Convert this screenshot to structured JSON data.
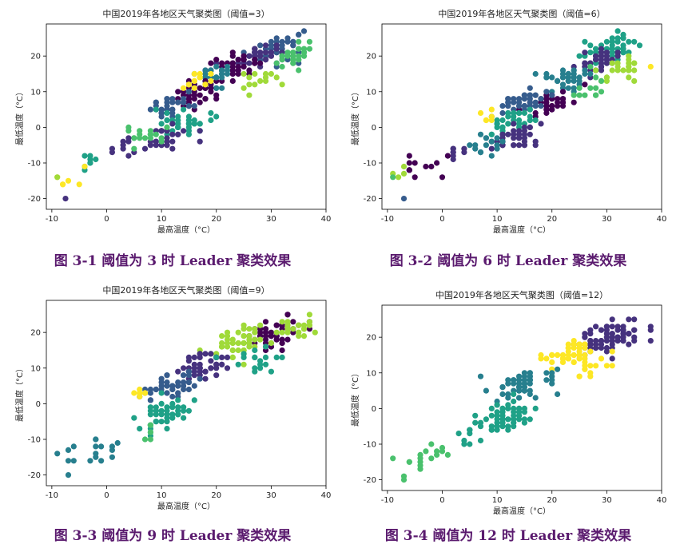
{
  "captions": [
    "图 3-1  阈值为 3 时 Leader 聚类效果",
    "图 3-2  阈值为 6 时 Leader 聚类效果",
    "图 3-3  阈值为 9 时 Leader 聚类效果",
    "图 3-4  阈值为 12 时 Leader 聚类效果"
  ],
  "chart_data": [
    {
      "type": "scatter",
      "title": "中国2019年各地区天气聚类图（阈值=3）",
      "xlabel": "最高温度（°C）",
      "ylabel": "最低温度（°C）",
      "xlim": [
        -11,
        40
      ],
      "ylim": [
        -23,
        29
      ],
      "xticks": [
        -10,
        0,
        10,
        20,
        30,
        40
      ],
      "yticks": [
        -20,
        -10,
        0,
        10,
        20
      ],
      "grid": false,
      "threshold": 3,
      "colors": [
        "#440154",
        "#46327e",
        "#365c8d",
        "#277f8e",
        "#1fa187",
        "#4ac16d",
        "#a0da39",
        "#fde725"
      ],
      "clusters": [
        {
          "cx": 31,
          "cy": 22,
          "sx": 2.5,
          "sy": 1.8,
          "n": 60,
          "c": 2
        },
        {
          "cx": 27,
          "cy": 20,
          "sx": 2.0,
          "sy": 1.5,
          "n": 45,
          "c": 1
        },
        {
          "cx": 34,
          "cy": 20,
          "sx": 2.0,
          "sy": 1.5,
          "n": 30,
          "c": 5
        },
        {
          "cx": 23,
          "cy": 17,
          "sx": 2.2,
          "sy": 1.6,
          "n": 40,
          "c": 0
        },
        {
          "cx": 20,
          "cy": 14,
          "sx": 2.0,
          "sy": 1.5,
          "n": 35,
          "c": 3
        },
        {
          "cx": 16,
          "cy": 9,
          "sx": 2.0,
          "sy": 1.6,
          "n": 40,
          "c": 0
        },
        {
          "cx": 12,
          "cy": 6,
          "sx": 2.0,
          "sy": 1.5,
          "n": 35,
          "c": 2
        },
        {
          "cx": 14,
          "cy": 2,
          "sx": 2.5,
          "sy": 1.8,
          "n": 40,
          "c": 4
        },
        {
          "cx": 11,
          "cy": -3,
          "sx": 2.0,
          "sy": 1.6,
          "n": 30,
          "c": 1
        },
        {
          "cx": 7,
          "cy": -2,
          "sx": 2.0,
          "sy": 2.0,
          "n": 18,
          "c": 5
        },
        {
          "cx": 16,
          "cy": 12,
          "sx": 1.5,
          "sy": 1.2,
          "n": 15,
          "c": 7
        },
        {
          "cx": 28,
          "cy": 12,
          "sx": 2.5,
          "sy": 2.0,
          "n": 14,
          "c": 6
        },
        {
          "cx": 3,
          "cy": -5,
          "sx": 1.2,
          "sy": 1.5,
          "n": 8,
          "c": 1
        },
        {
          "cx": -3,
          "cy": -10,
          "sx": 1.5,
          "sy": 2.0,
          "n": 8,
          "c": 4
        },
        {
          "cx": -6,
          "cy": -14,
          "sx": 1.5,
          "sy": 1.5,
          "n": 6,
          "c": 7
        }
      ],
      "extra_points": [
        [
          -7.5,
          -20,
          1
        ],
        [
          -9,
          -14,
          6
        ]
      ]
    },
    {
      "type": "scatter",
      "title": "中国2019年各地区天气聚类图（阈值=6）",
      "xlabel": "最高温度（°C）",
      "ylabel": "最低温度（°C）",
      "xlim": [
        -11,
        40
      ],
      "ylim": [
        -23,
        29
      ],
      "xticks": [
        -10,
        0,
        10,
        20,
        30,
        40
      ],
      "yticks": [
        -20,
        -10,
        0,
        10,
        20
      ],
      "grid": false,
      "threshold": 6,
      "colors": [
        "#440154",
        "#46327e",
        "#365c8d",
        "#277f8e",
        "#1fa187",
        "#4ac16d",
        "#a0da39",
        "#fde725"
      ],
      "clusters": [
        {
          "cx": 31,
          "cy": 22,
          "sx": 2.5,
          "sy": 1.8,
          "n": 55,
          "c": 4
        },
        {
          "cx": 28,
          "cy": 18,
          "sx": 2.2,
          "sy": 1.6,
          "n": 40,
          "c": 1
        },
        {
          "cx": 33,
          "cy": 17,
          "sx": 2.0,
          "sy": 1.5,
          "n": 25,
          "c": 6
        },
        {
          "cx": 23,
          "cy": 14,
          "sx": 2.2,
          "sy": 1.6,
          "n": 40,
          "c": 3
        },
        {
          "cx": 20,
          "cy": 7,
          "sx": 2.0,
          "sy": 1.5,
          "n": 35,
          "c": 0
        },
        {
          "cx": 14,
          "cy": 7,
          "sx": 2.5,
          "sy": 1.8,
          "n": 45,
          "c": 2
        },
        {
          "cx": 12,
          "cy": 1,
          "sx": 2.2,
          "sy": 1.6,
          "n": 35,
          "c": 4
        },
        {
          "cx": 13,
          "cy": -3,
          "sx": 2.2,
          "sy": 1.8,
          "n": 40,
          "c": 1
        },
        {
          "cx": 8,
          "cy": -5,
          "sx": 1.8,
          "sy": 1.8,
          "n": 15,
          "c": 3
        },
        {
          "cx": 26,
          "cy": 10,
          "sx": 2.0,
          "sy": 2.0,
          "n": 12,
          "c": 5
        },
        {
          "cx": 8,
          "cy": 3,
          "sx": 1.0,
          "sy": 1.0,
          "n": 6,
          "c": 7
        },
        {
          "cx": 3,
          "cy": -6,
          "sx": 1.2,
          "sy": 1.5,
          "n": 8,
          "c": 1
        },
        {
          "cx": -4,
          "cy": -11,
          "sx": 2.0,
          "sy": 2.5,
          "n": 12,
          "c": 0
        },
        {
          "cx": -7,
          "cy": -13,
          "sx": 1.0,
          "sy": 1.0,
          "n": 4,
          "c": 6
        }
      ],
      "extra_points": [
        [
          -7,
          -20,
          2
        ],
        [
          -9,
          -14,
          5
        ],
        [
          38,
          17,
          7
        ]
      ]
    },
    {
      "type": "scatter",
      "title": "中国2019年各地区天气聚类图（阈值=9）",
      "xlabel": "最高温度（°C）",
      "ylabel": "最低温度（°C）",
      "xlim": [
        -11,
        40
      ],
      "ylim": [
        -23,
        29
      ],
      "xticks": [
        -10,
        0,
        10,
        20,
        30,
        40
      ],
      "yticks": [
        -20,
        -10,
        0,
        10,
        20
      ],
      "grid": false,
      "threshold": 9,
      "colors": [
        "#440154",
        "#46327e",
        "#365c8d",
        "#277f8e",
        "#1fa187",
        "#4ac16d",
        "#a0da39",
        "#fde725"
      ],
      "clusters": [
        {
          "cx": 31,
          "cy": 20,
          "sx": 2.5,
          "sy": 2.0,
          "n": 55,
          "c": 0
        },
        {
          "cx": 35,
          "cy": 21,
          "sx": 1.8,
          "sy": 1.5,
          "n": 25,
          "c": 6
        },
        {
          "cx": 24,
          "cy": 17,
          "sx": 2.5,
          "sy": 2.0,
          "n": 50,
          "c": 6
        },
        {
          "cx": 18,
          "cy": 11,
          "sx": 2.5,
          "sy": 2.0,
          "n": 45,
          "c": 1
        },
        {
          "cx": 12,
          "cy": 5,
          "sx": 2.5,
          "sy": 2.0,
          "n": 45,
          "c": 2
        },
        {
          "cx": 11,
          "cy": -3,
          "sx": 2.5,
          "sy": 2.0,
          "n": 45,
          "c": 4
        },
        {
          "cx": 27,
          "cy": 12,
          "sx": 2.5,
          "sy": 2.5,
          "n": 18,
          "c": 4
        },
        {
          "cx": 7,
          "cy": 3,
          "sx": 1.2,
          "sy": 1.0,
          "n": 7,
          "c": 7
        },
        {
          "cx": -2,
          "cy": -12,
          "sx": 2.5,
          "sy": 2.5,
          "n": 16,
          "c": 3
        },
        {
          "cx": 8,
          "cy": -8,
          "sx": 1.5,
          "sy": 1.2,
          "n": 6,
          "c": 5
        }
      ],
      "extra_points": [
        [
          -7,
          -20,
          3
        ],
        [
          -9,
          -14,
          3
        ]
      ]
    },
    {
      "type": "scatter",
      "title": "中国2019年各地区天气聚类图（阈值=12）",
      "xlabel": "最高温度（°C）",
      "ylabel": "最低温度（°C）",
      "xlim": [
        -11,
        40
      ],
      "ylim": [
        -23,
        29
      ],
      "xticks": [
        -10,
        0,
        10,
        20,
        30,
        40
      ],
      "yticks": [
        -20,
        -10,
        0,
        10,
        20
      ],
      "grid": false,
      "threshold": 12,
      "colors": [
        "#440154",
        "#46327e",
        "#365c8d",
        "#277f8e",
        "#1fa187",
        "#4ac16d",
        "#a0da39",
        "#fde725"
      ],
      "clusters": [
        {
          "cx": 31,
          "cy": 20,
          "sx": 3.0,
          "sy": 2.2,
          "n": 80,
          "c": 1
        },
        {
          "cx": 23,
          "cy": 15,
          "sx": 2.5,
          "sy": 1.8,
          "n": 55,
          "c": 7
        },
        {
          "cx": 15,
          "cy": 7,
          "sx": 2.8,
          "sy": 2.2,
          "n": 60,
          "c": 3
        },
        {
          "cx": 12,
          "cy": -2,
          "sx": 2.5,
          "sy": 2.0,
          "n": 55,
          "c": 4
        },
        {
          "cx": 6,
          "cy": -6,
          "sx": 2.0,
          "sy": 2.0,
          "n": 15,
          "c": 4
        },
        {
          "cx": 27,
          "cy": 11,
          "sx": 2.0,
          "sy": 1.8,
          "n": 12,
          "c": 7
        },
        {
          "cx": -3,
          "cy": -13,
          "sx": 2.5,
          "sy": 2.5,
          "n": 16,
          "c": 5
        }
      ],
      "extra_points": [
        [
          -7,
          -20,
          5
        ],
        [
          -9,
          -14,
          5
        ]
      ]
    }
  ]
}
